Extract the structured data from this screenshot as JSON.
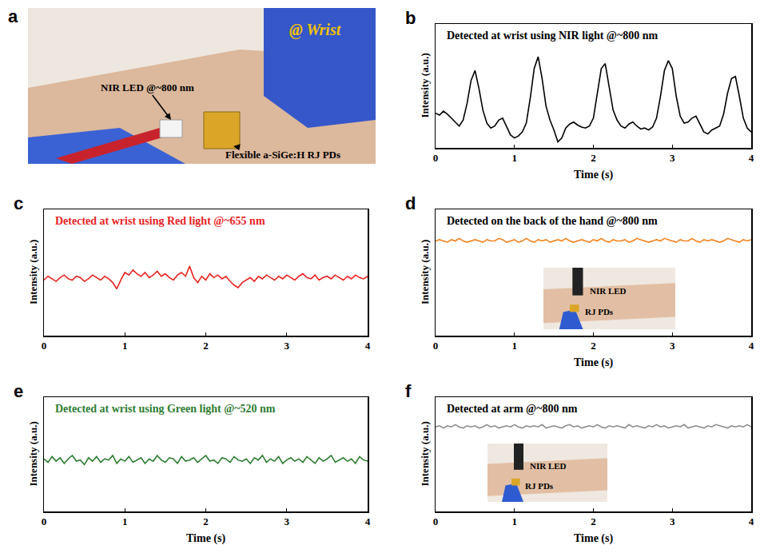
{
  "photo": {
    "panel": "a",
    "labels": [
      "@ Wrist",
      "NIR LED @~800 nm",
      "Flexible a-SiGe:H RJ PDs"
    ]
  },
  "chart_data": [
    {
      "panel": "b",
      "type": "line",
      "title": "Detected at wrist using NIR light @~800 nm",
      "xlabel": "Time (s)",
      "ylabel": "Intensity (a.u.)",
      "color": "#000000",
      "grid": false,
      "tick_labels": "x",
      "xlim": [
        0,
        4
      ],
      "xticks": [
        0,
        1,
        2,
        3,
        4
      ],
      "ylim": [
        0,
        1.25
      ],
      "x": [
        0,
        0.05,
        0.1,
        0.15,
        0.2,
        0.25,
        0.3,
        0.35,
        0.4,
        0.45,
        0.5,
        0.55,
        0.6,
        0.65,
        0.7,
        0.75,
        0.8,
        0.85,
        0.9,
        0.95,
        1,
        1.05,
        1.1,
        1.15,
        1.2,
        1.25,
        1.3,
        1.35,
        1.4,
        1.45,
        1.5,
        1.55,
        1.6,
        1.65,
        1.7,
        1.75,
        1.8,
        1.85,
        1.9,
        1.95,
        2,
        2.05,
        2.1,
        2.15,
        2.2,
        2.25,
        2.3,
        2.35,
        2.4,
        2.45,
        2.5,
        2.55,
        2.6,
        2.65,
        2.7,
        2.75,
        2.8,
        2.85,
        2.9,
        2.95,
        3,
        3.05,
        3.1,
        3.15,
        3.2,
        3.25,
        3.3,
        3.35,
        3.4,
        3.45,
        3.5,
        3.55,
        3.6,
        3.65,
        3.7,
        3.75,
        3.8,
        3.85,
        3.9,
        3.95,
        4
      ],
      "values": [
        0.35,
        0.33,
        0.37,
        0.34,
        0.3,
        0.26,
        0.22,
        0.28,
        0.45,
        0.68,
        0.78,
        0.6,
        0.38,
        0.25,
        0.2,
        0.22,
        0.28,
        0.3,
        0.22,
        0.13,
        0.1,
        0.12,
        0.16,
        0.25,
        0.5,
        0.8,
        0.92,
        0.7,
        0.42,
        0.28,
        0.18,
        0.06,
        0.1,
        0.2,
        0.24,
        0.26,
        0.23,
        0.21,
        0.2,
        0.22,
        0.3,
        0.55,
        0.8,
        0.85,
        0.62,
        0.38,
        0.28,
        0.22,
        0.2,
        0.24,
        0.26,
        0.22,
        0.19,
        0.2,
        0.18,
        0.21,
        0.3,
        0.52,
        0.78,
        0.88,
        0.8,
        0.52,
        0.32,
        0.25,
        0.26,
        0.3,
        0.32,
        0.24,
        0.16,
        0.14,
        0.18,
        0.2,
        0.22,
        0.34,
        0.55,
        0.7,
        0.72,
        0.52,
        0.3,
        0.2,
        0.16
      ]
    },
    {
      "panel": "c",
      "type": "line",
      "title": "Detected at wrist using Red light @~655 nm",
      "ylabel": "Intensity (a.u.)",
      "color": "#e8231f",
      "grid": false,
      "tick_labels": "x",
      "xlim": [
        0,
        4
      ],
      "xticks": [
        0,
        1,
        2,
        3,
        4
      ],
      "ylim": [
        0,
        1
      ],
      "x": [
        0,
        0.05,
        0.1,
        0.15,
        0.2,
        0.25,
        0.3,
        0.35,
        0.4,
        0.45,
        0.5,
        0.55,
        0.6,
        0.65,
        0.7,
        0.75,
        0.8,
        0.85,
        0.9,
        0.95,
        1,
        1.05,
        1.1,
        1.15,
        1.2,
        1.25,
        1.3,
        1.35,
        1.4,
        1.45,
        1.5,
        1.55,
        1.6,
        1.65,
        1.7,
        1.75,
        1.8,
        1.85,
        1.9,
        1.95,
        2,
        2.05,
        2.1,
        2.15,
        2.2,
        2.25,
        2.3,
        2.35,
        2.4,
        2.45,
        2.5,
        2.55,
        2.6,
        2.65,
        2.7,
        2.75,
        2.8,
        2.85,
        2.9,
        2.95,
        3,
        3.05,
        3.1,
        3.15,
        3.2,
        3.25,
        3.3,
        3.35,
        3.4,
        3.45,
        3.5,
        3.55,
        3.6,
        3.65,
        3.7,
        3.75,
        3.8,
        3.85,
        3.9,
        3.95,
        4
      ],
      "values": [
        0.44,
        0.47,
        0.45,
        0.43,
        0.46,
        0.48,
        0.45,
        0.44,
        0.47,
        0.46,
        0.43,
        0.45,
        0.48,
        0.46,
        0.44,
        0.47,
        0.45,
        0.42,
        0.37,
        0.44,
        0.5,
        0.48,
        0.52,
        0.49,
        0.47,
        0.5,
        0.46,
        0.48,
        0.51,
        0.47,
        0.49,
        0.46,
        0.44,
        0.48,
        0.5,
        0.47,
        0.55,
        0.46,
        0.42,
        0.47,
        0.44,
        0.49,
        0.46,
        0.48,
        0.45,
        0.47,
        0.43,
        0.4,
        0.38,
        0.42,
        0.44,
        0.46,
        0.43,
        0.47,
        0.45,
        0.48,
        0.46,
        0.44,
        0.47,
        0.45,
        0.48,
        0.46,
        0.44,
        0.47,
        0.49,
        0.46,
        0.45,
        0.48,
        0.44,
        0.46,
        0.47,
        0.45,
        0.48,
        0.46,
        0.44,
        0.47,
        0.45,
        0.48,
        0.46,
        0.45,
        0.47
      ]
    },
    {
      "panel": "d",
      "type": "line",
      "title": "Detected on the back of the hand @~800 nm",
      "xlabel": "Time (s)",
      "ylabel": "Intensity (a.u.)",
      "color": "#f5821f",
      "grid": false,
      "tick_labels": "x",
      "xlim": [
        0,
        4
      ],
      "xticks": [
        0,
        1,
        2,
        3,
        4
      ],
      "ylim": [
        0,
        1
      ],
      "annotations": [
        "NIR LED",
        "RJ PDs"
      ],
      "x": [
        0,
        0.05,
        0.1,
        0.15,
        0.2,
        0.25,
        0.3,
        0.35,
        0.4,
        0.45,
        0.5,
        0.55,
        0.6,
        0.65,
        0.7,
        0.75,
        0.8,
        0.85,
        0.9,
        0.95,
        1,
        1.05,
        1.1,
        1.15,
        1.2,
        1.25,
        1.3,
        1.35,
        1.4,
        1.45,
        1.5,
        1.55,
        1.6,
        1.65,
        1.7,
        1.75,
        1.8,
        1.85,
        1.9,
        1.95,
        2,
        2.05,
        2.1,
        2.15,
        2.2,
        2.25,
        2.3,
        2.35,
        2.4,
        2.45,
        2.5,
        2.55,
        2.6,
        2.65,
        2.7,
        2.75,
        2.8,
        2.85,
        2.9,
        2.95,
        3,
        3.05,
        3.1,
        3.15,
        3.2,
        3.25,
        3.3,
        3.35,
        3.4,
        3.45,
        3.5,
        3.55,
        3.6,
        3.65,
        3.7,
        3.75,
        3.8,
        3.85,
        3.9,
        3.95,
        4
      ],
      "values": [
        0.75,
        0.76,
        0.75,
        0.74,
        0.76,
        0.75,
        0.77,
        0.75,
        0.74,
        0.75,
        0.76,
        0.75,
        0.74,
        0.76,
        0.75,
        0.75,
        0.77,
        0.76,
        0.74,
        0.75,
        0.76,
        0.74,
        0.75,
        0.77,
        0.75,
        0.74,
        0.76,
        0.75,
        0.76,
        0.74,
        0.75,
        0.76,
        0.75,
        0.77,
        0.75,
        0.74,
        0.75,
        0.76,
        0.75,
        0.74,
        0.76,
        0.75,
        0.77,
        0.75,
        0.74,
        0.76,
        0.75,
        0.75,
        0.76,
        0.74,
        0.75,
        0.77,
        0.76,
        0.75,
        0.74,
        0.75,
        0.76,
        0.75,
        0.77,
        0.76,
        0.75,
        0.74,
        0.76,
        0.75,
        0.75,
        0.77,
        0.75,
        0.74,
        0.76,
        0.75,
        0.76,
        0.75,
        0.74,
        0.75,
        0.77,
        0.76,
        0.75,
        0.74,
        0.76,
        0.75,
        0.76
      ]
    },
    {
      "panel": "e",
      "type": "line",
      "title": "Detected at wrist using Green light @~520 nm",
      "xlabel": "Time (s)",
      "ylabel": "Intensity (a.u.)",
      "color": "#2e7d32",
      "grid": false,
      "tick_labels": "x",
      "xlim": [
        0,
        4
      ],
      "xticks": [
        0,
        1,
        2,
        3,
        4
      ],
      "ylim": [
        0,
        1
      ],
      "x": [
        0,
        0.05,
        0.1,
        0.15,
        0.2,
        0.25,
        0.3,
        0.35,
        0.4,
        0.45,
        0.5,
        0.55,
        0.6,
        0.65,
        0.7,
        0.75,
        0.8,
        0.85,
        0.9,
        0.95,
        1,
        1.05,
        1.1,
        1.15,
        1.2,
        1.25,
        1.3,
        1.35,
        1.4,
        1.45,
        1.5,
        1.55,
        1.6,
        1.65,
        1.7,
        1.75,
        1.8,
        1.85,
        1.9,
        1.95,
        2,
        2.05,
        2.1,
        2.15,
        2.2,
        2.25,
        2.3,
        2.35,
        2.4,
        2.45,
        2.5,
        2.55,
        2.6,
        2.65,
        2.7,
        2.75,
        2.8,
        2.85,
        2.9,
        2.95,
        3,
        3.05,
        3.1,
        3.15,
        3.2,
        3.25,
        3.3,
        3.35,
        3.4,
        3.45,
        3.5,
        3.55,
        3.6,
        3.65,
        3.7,
        3.75,
        3.8,
        3.85,
        3.9,
        3.95,
        4
      ],
      "values": [
        0.46,
        0.43,
        0.48,
        0.44,
        0.47,
        0.42,
        0.46,
        0.49,
        0.44,
        0.45,
        0.41,
        0.47,
        0.44,
        0.48,
        0.43,
        0.46,
        0.45,
        0.49,
        0.42,
        0.46,
        0.44,
        0.48,
        0.43,
        0.45,
        0.47,
        0.42,
        0.46,
        0.44,
        0.49,
        0.45,
        0.43,
        0.47,
        0.46,
        0.42,
        0.48,
        0.44,
        0.45,
        0.47,
        0.43,
        0.46,
        0.49,
        0.44,
        0.45,
        0.42,
        0.47,
        0.46,
        0.43,
        0.48,
        0.45,
        0.44,
        0.46,
        0.42,
        0.47,
        0.45,
        0.49,
        0.43,
        0.46,
        0.44,
        0.48,
        0.42,
        0.45,
        0.47,
        0.44,
        0.46,
        0.43,
        0.48,
        0.45,
        0.42,
        0.47,
        0.44,
        0.46,
        0.49,
        0.43,
        0.45,
        0.47,
        0.44,
        0.46,
        0.42,
        0.48,
        0.45,
        0.44
      ]
    },
    {
      "panel": "f",
      "type": "line",
      "title": "Detected at arm @~800 nm",
      "xlabel": "Time (s)",
      "ylabel": "Intensity (a.u.)",
      "color": "#8c8c8c",
      "grid": false,
      "tick_labels": "x",
      "xlim": [
        0,
        4
      ],
      "xticks": [
        0,
        1,
        2,
        3,
        4
      ],
      "ylim": [
        0,
        1
      ],
      "annotations": [
        "NIR LED",
        "RJ PDs"
      ],
      "x": [
        0,
        0.05,
        0.1,
        0.15,
        0.2,
        0.25,
        0.3,
        0.35,
        0.4,
        0.45,
        0.5,
        0.55,
        0.6,
        0.65,
        0.7,
        0.75,
        0.8,
        0.85,
        0.9,
        0.95,
        1,
        1.05,
        1.1,
        1.15,
        1.2,
        1.25,
        1.3,
        1.35,
        1.4,
        1.45,
        1.5,
        1.55,
        1.6,
        1.65,
        1.7,
        1.75,
        1.8,
        1.85,
        1.9,
        1.95,
        2,
        2.05,
        2.1,
        2.15,
        2.2,
        2.25,
        2.3,
        2.35,
        2.4,
        2.45,
        2.5,
        2.55,
        2.6,
        2.65,
        2.7,
        2.75,
        2.8,
        2.85,
        2.9,
        2.95,
        3,
        3.05,
        3.1,
        3.15,
        3.2,
        3.25,
        3.3,
        3.35,
        3.4,
        3.45,
        3.5,
        3.55,
        3.6,
        3.65,
        3.7,
        3.75,
        3.8,
        3.85,
        3.9,
        3.95,
        4
      ],
      "values": [
        0.74,
        0.75,
        0.73,
        0.75,
        0.74,
        0.76,
        0.74,
        0.73,
        0.75,
        0.74,
        0.75,
        0.73,
        0.74,
        0.76,
        0.74,
        0.75,
        0.73,
        0.74,
        0.75,
        0.74,
        0.76,
        0.74,
        0.73,
        0.75,
        0.74,
        0.75,
        0.74,
        0.76,
        0.73,
        0.74,
        0.75,
        0.74,
        0.73,
        0.75,
        0.76,
        0.74,
        0.75,
        0.73,
        0.74,
        0.75,
        0.74,
        0.76,
        0.74,
        0.73,
        0.75,
        0.74,
        0.75,
        0.74,
        0.73,
        0.76,
        0.74,
        0.75,
        0.74,
        0.73,
        0.75,
        0.74,
        0.76,
        0.74,
        0.75,
        0.73,
        0.74,
        0.75,
        0.74,
        0.76,
        0.73,
        0.74,
        0.75,
        0.74,
        0.73,
        0.75,
        0.74,
        0.76,
        0.75,
        0.74,
        0.73,
        0.75,
        0.74,
        0.75,
        0.74,
        0.76,
        0.74
      ]
    }
  ]
}
